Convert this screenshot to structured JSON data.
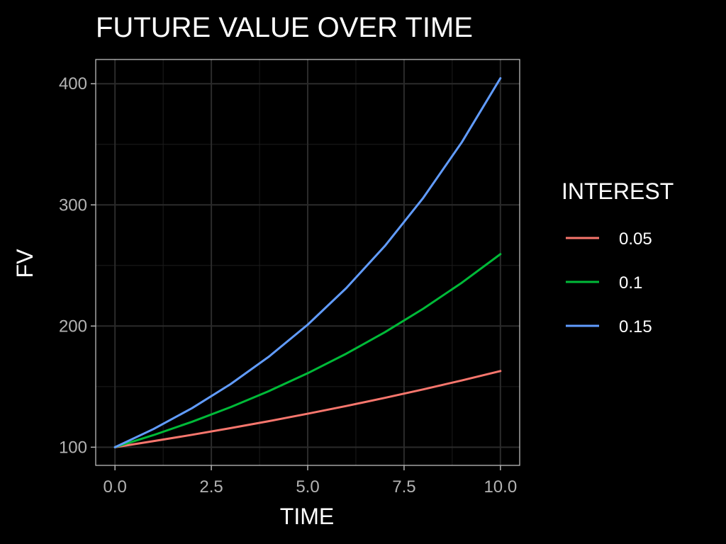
{
  "chart_data": {
    "type": "line",
    "title": "FUTURE VALUE OVER TIME",
    "xlabel": "TIME",
    "ylabel": "FV",
    "xlim": [
      -0.5,
      10.5
    ],
    "ylim": [
      85,
      420
    ],
    "x_ticks": [
      0,
      2.5,
      5,
      7.5,
      10
    ],
    "x_tick_labels": [
      "0.0",
      "2.5",
      "5.0",
      "7.5",
      "10.0"
    ],
    "y_ticks": [
      100,
      200,
      300,
      400
    ],
    "y_tick_labels": [
      "100",
      "200",
      "300",
      "400"
    ],
    "grid": true,
    "legend": {
      "title": "INTEREST",
      "position": "right"
    },
    "x": [
      0,
      1,
      2,
      3,
      4,
      5,
      6,
      7,
      8,
      9,
      10
    ],
    "series": [
      {
        "name": "0.05",
        "color": "#f8766d",
        "values": [
          100,
          105,
          110.25,
          115.76,
          121.55,
          127.63,
          134.01,
          140.71,
          147.75,
          155.13,
          162.89
        ]
      },
      {
        "name": "0.1",
        "color": "#00ba38",
        "values": [
          100,
          110,
          121,
          133.1,
          146.41,
          161.05,
          177.16,
          194.87,
          214.36,
          235.79,
          259.37
        ]
      },
      {
        "name": "0.15",
        "color": "#619cff",
        "values": [
          100,
          115,
          132.25,
          152.09,
          174.9,
          201.14,
          231.31,
          266.0,
          305.9,
          351.79,
          404.56
        ]
      }
    ]
  }
}
